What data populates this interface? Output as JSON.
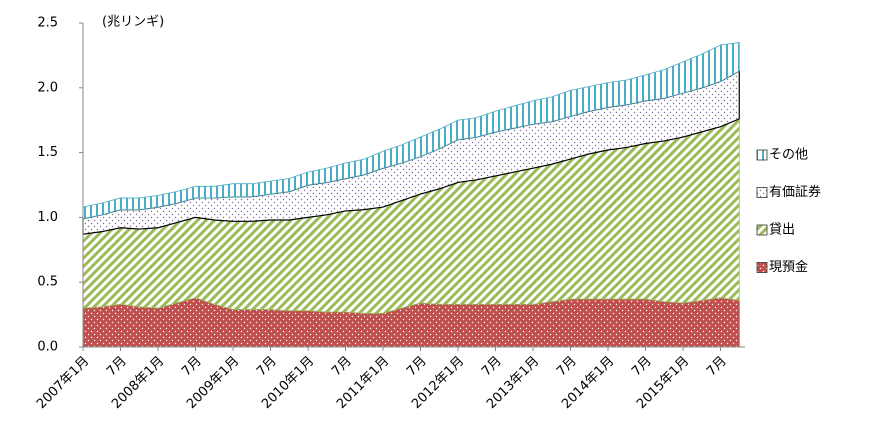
{
  "chart_data": {
    "type": "stacked-area",
    "unit_label": "(兆リンギ)",
    "categories": [
      "2007年1月",
      null,
      "7月",
      null,
      "2008年1月",
      null,
      "7月",
      null,
      "2009年1月",
      null,
      "7月",
      null,
      "2010年1月",
      null,
      "7月",
      null,
      "2011年1月",
      null,
      "7月",
      null,
      "2012年1月",
      null,
      "7月",
      null,
      "2013年1月",
      null,
      "7月",
      null,
      "2014年1月",
      null,
      "7月",
      null,
      "2015年1月",
      null,
      "7月",
      null
    ],
    "series": [
      {
        "name": "現預金",
        "color": "#c0504d",
        "values": [
          0.3,
          0.31,
          0.33,
          0.31,
          0.3,
          0.34,
          0.38,
          0.33,
          0.29,
          0.29,
          0.29,
          0.28,
          0.28,
          0.27,
          0.27,
          0.26,
          0.26,
          0.3,
          0.34,
          0.33,
          0.33,
          0.33,
          0.33,
          0.33,
          0.33,
          0.35,
          0.37,
          0.37,
          0.37,
          0.37,
          0.37,
          0.35,
          0.34,
          0.36,
          0.38,
          0.36
        ]
      },
      {
        "name": "貸出",
        "color": "#9bbb59",
        "values": [
          0.57,
          0.58,
          0.59,
          0.6,
          0.62,
          0.62,
          0.62,
          0.65,
          0.68,
          0.68,
          0.69,
          0.7,
          0.72,
          0.75,
          0.78,
          0.8,
          0.82,
          0.83,
          0.84,
          0.89,
          0.94,
          0.96,
          0.99,
          1.02,
          1.05,
          1.06,
          1.08,
          1.12,
          1.15,
          1.17,
          1.2,
          1.24,
          1.28,
          1.3,
          1.32,
          1.4
        ]
      },
      {
        "name": "有価証券",
        "color": "#7f6a9a",
        "values": [
          0.12,
          0.13,
          0.14,
          0.15,
          0.16,
          0.15,
          0.15,
          0.17,
          0.19,
          0.19,
          0.2,
          0.22,
          0.25,
          0.25,
          0.25,
          0.27,
          0.3,
          0.29,
          0.29,
          0.31,
          0.33,
          0.33,
          0.34,
          0.34,
          0.34,
          0.33,
          0.33,
          0.33,
          0.33,
          0.33,
          0.33,
          0.33,
          0.34,
          0.34,
          0.35,
          0.37
        ]
      },
      {
        "name": "その他",
        "color": "#4bacc6",
        "values": [
          0.09,
          0.09,
          0.09,
          0.09,
          0.09,
          0.09,
          0.09,
          0.09,
          0.1,
          0.1,
          0.1,
          0.1,
          0.1,
          0.11,
          0.12,
          0.12,
          0.13,
          0.14,
          0.15,
          0.15,
          0.15,
          0.15,
          0.16,
          0.17,
          0.18,
          0.19,
          0.2,
          0.19,
          0.19,
          0.19,
          0.2,
          0.22,
          0.24,
          0.26,
          0.28,
          0.22
        ]
      }
    ],
    "ylim": [
      0,
      2.5
    ],
    "yticks": [
      {
        "value": 0,
        "label": "0.0"
      },
      {
        "value": 0.5,
        "label": "0.5"
      },
      {
        "value": 1,
        "label": "1.0"
      },
      {
        "value": 1.5,
        "label": "1.5"
      },
      {
        "value": 2,
        "label": "2.0"
      },
      {
        "value": 2.5,
        "label": "2.5"
      }
    ]
  }
}
